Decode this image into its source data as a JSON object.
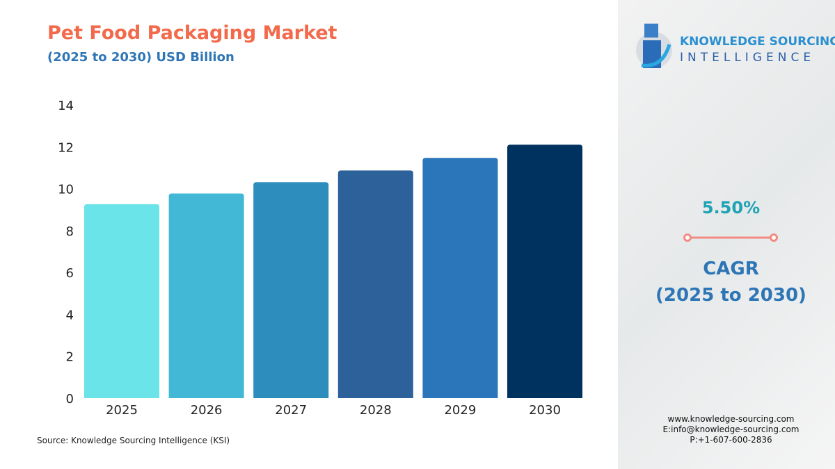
{
  "chart_data": {
    "type": "bar",
    "title": "Pet Food Packaging Market",
    "subtitle": "(2025 to 2030) USD Billion",
    "categories": [
      "2025",
      "2026",
      "2027",
      "2028",
      "2029",
      "2030"
    ],
    "values": [
      9.26,
      9.77,
      10.31,
      10.87,
      11.47,
      12.1
    ],
    "colors": [
      "#6ae3e9",
      "#42b7d6",
      "#2d8dbd",
      "#2d6199",
      "#2b75ba",
      "#00325f"
    ],
    "ylim": [
      0,
      14
    ],
    "yticks": [
      0,
      2,
      4,
      6,
      8,
      10,
      12,
      14
    ],
    "grid": false
  },
  "source": "Source: Knowledge Sourcing Intelligence (KSI)",
  "logo": {
    "line1": "KNOWLEDGE SOURCING",
    "line2": "INTELLIGENCE"
  },
  "cagr": {
    "value": "5.50%",
    "label": "CAGR",
    "period": "(2025 to 2030)"
  },
  "contact": {
    "web": "www.knowledge-sourcing.com",
    "email": "E:info@knowledge-sourcing.com",
    "phone": "P:+1-607-600-2836"
  }
}
